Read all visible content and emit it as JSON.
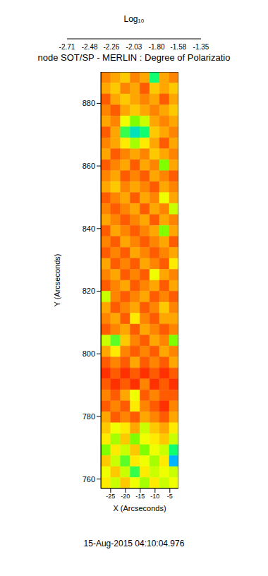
{
  "chart_data": {
    "type": "heatmap",
    "title": "node SOT/SP - MERLIN : Degree of Polarizatio",
    "subtitle": "15-Aug-2015 04:10:04.976",
    "x_label": "X (Arcseconds)",
    "y_label": "Y (Arcseconds)",
    "xlim": [
      -28.3,
      -2.1
    ],
    "xticks": [
      -25,
      -20,
      -15,
      -10,
      -5
    ],
    "ylim": [
      757,
      890
    ],
    "yticks": [
      760,
      780,
      800,
      820,
      840,
      860,
      880
    ],
    "x_edges": [
      -28.3,
      -25,
      -21.7,
      -18.4,
      -15.1,
      -11.8,
      -8.5,
      -5.2,
      -2.1
    ],
    "y_edges": [
      890,
      886.5,
      883,
      879.5,
      876,
      872.5,
      869,
      865.5,
      862,
      858.5,
      855,
      851.5,
      848,
      844.5,
      841,
      837.5,
      834,
      830.5,
      827,
      823.5,
      820,
      816.5,
      813,
      809.5,
      806,
      802.5,
      799,
      795.5,
      792,
      788.5,
      785,
      781.5,
      778,
      774.5,
      771,
      767.5,
      764,
      760.5,
      757
    ],
    "cells": [
      [
        -2.55,
        -2.5,
        -2.45,
        -2.55,
        -2.5,
        -2.05,
        -2.5,
        -2.55
      ],
      [
        -2.5,
        -2.45,
        -2.55,
        -2.5,
        -2.6,
        -2.45,
        -2.5,
        -2.45
      ],
      [
        -2.6,
        -2.5,
        -2.45,
        -2.5,
        -2.55,
        -2.5,
        -2.6,
        -2.5
      ],
      [
        -2.55,
        -2.6,
        -2.5,
        -2.45,
        -2.5,
        -2.55,
        -2.5,
        -2.45
      ],
      [
        -2.5,
        -2.55,
        -2.35,
        -2.2,
        -2.3,
        -2.5,
        -2.55,
        -2.5
      ],
      [
        -2.6,
        -2.5,
        -2.1,
        -1.95,
        -2.05,
        -2.45,
        -2.5,
        -2.55
      ],
      [
        -2.55,
        -2.5,
        -2.4,
        -2.25,
        -2.4,
        -2.5,
        -2.6,
        -2.5
      ],
      [
        -2.5,
        -2.6,
        -2.55,
        -2.5,
        -2.55,
        -2.45,
        -2.5,
        -2.55
      ],
      [
        -2.6,
        -2.55,
        -2.5,
        -2.6,
        -2.5,
        -2.55,
        -2.2,
        -2.5
      ],
      [
        -2.55,
        -2.5,
        -2.6,
        -2.55,
        -2.6,
        -2.5,
        -2.55,
        -2.6
      ],
      [
        -2.5,
        -2.45,
        -2.55,
        -2.5,
        -2.55,
        -2.6,
        -2.5,
        -2.55
      ],
      [
        -2.6,
        -2.55,
        -2.5,
        -2.6,
        -2.5,
        -2.55,
        -2.35,
        -2.5
      ],
      [
        -2.55,
        -2.6,
        -2.55,
        -2.5,
        -2.6,
        -2.5,
        -2.55,
        -2.3
      ],
      [
        -2.5,
        -2.55,
        -2.6,
        -2.55,
        -2.5,
        -2.6,
        -2.5,
        -2.55
      ],
      [
        -2.6,
        -2.5,
        -2.55,
        -2.6,
        -2.55,
        -2.5,
        -2.2,
        -2.5
      ],
      [
        -2.55,
        -2.6,
        -2.5,
        -2.55,
        -2.6,
        -2.55,
        -2.5,
        -2.6
      ],
      [
        -2.6,
        -2.55,
        -2.6,
        -2.5,
        -2.55,
        -2.6,
        -2.55,
        -2.5
      ],
      [
        -2.5,
        -2.6,
        -2.55,
        -2.6,
        -2.5,
        -2.55,
        -2.6,
        -2.4
      ],
      [
        -2.55,
        -2.5,
        -2.6,
        -2.55,
        -2.6,
        -2.35,
        -2.5,
        -2.55
      ],
      [
        -2.6,
        -2.55,
        -2.5,
        -2.6,
        -2.55,
        -2.5,
        -2.6,
        -2.5
      ],
      [
        -2.3,
        -2.55,
        -2.6,
        -2.55,
        -2.5,
        -2.6,
        -2.55,
        -2.6
      ],
      [
        -2.5,
        -2.6,
        -2.55,
        -2.5,
        -2.6,
        -2.55,
        -2.45,
        -2.55
      ],
      [
        -2.55,
        -2.5,
        -2.6,
        -2.4,
        -2.55,
        -2.6,
        -2.5,
        -2.5
      ],
      [
        -2.6,
        -2.55,
        -2.5,
        -2.6,
        -2.5,
        -2.55,
        -2.6,
        -2.55
      ],
      [
        -2.3,
        -2.15,
        -2.45,
        -2.55,
        -2.6,
        -2.5,
        -2.55,
        -2.2
      ],
      [
        -2.5,
        -2.4,
        -2.55,
        -2.6,
        -2.55,
        -2.6,
        -2.5,
        -2.55
      ],
      [
        -2.6,
        -2.55,
        -2.6,
        -2.5,
        -2.6,
        -2.55,
        -2.6,
        -2.5
      ],
      [
        -2.65,
        -2.6,
        -2.65,
        -2.6,
        -2.65,
        -2.6,
        -2.65,
        -2.6
      ],
      [
        -2.6,
        -2.65,
        -2.6,
        -2.65,
        -2.55,
        -2.65,
        -2.6,
        -2.65
      ],
      [
        -2.55,
        -2.6,
        -2.5,
        -2.35,
        -2.6,
        -2.55,
        -2.6,
        -2.6
      ],
      [
        -2.6,
        -2.55,
        -2.6,
        -2.4,
        -2.55,
        -2.6,
        -2.65,
        -2.55
      ],
      [
        -2.5,
        -2.6,
        -2.55,
        -2.6,
        -2.5,
        -2.55,
        -2.6,
        -2.5
      ],
      [
        -2.45,
        -2.35,
        -2.4,
        -2.5,
        -2.3,
        -2.45,
        -2.5,
        -2.4
      ],
      [
        -2.4,
        -2.25,
        -2.45,
        -2.2,
        -2.35,
        -2.4,
        -2.45,
        -2.3
      ],
      [
        -2.2,
        -2.4,
        -2.3,
        -2.45,
        -2.2,
        -2.35,
        -2.3,
        -2.05
      ],
      [
        -2.45,
        -2.3,
        -2.15,
        -2.4,
        -2.35,
        -2.25,
        -2.4,
        -1.85
      ],
      [
        -2.35,
        -2.45,
        -2.3,
        -2.1,
        -2.4,
        -2.3,
        -2.35,
        -2.3
      ],
      [
        -2.4,
        -2.3,
        -2.45,
        -2.35,
        -2.25,
        -2.4,
        -2.3,
        -2.35
      ]
    ],
    "colorbar": {
      "title": "Log₁₀",
      "range": [
        -2.71,
        -1.35
      ],
      "ticks": [
        -2.71,
        -2.48,
        -2.26,
        -2.03,
        {
          "value": -1.8,
          "label": "-1.80"
        },
        -1.58,
        -1.35
      ],
      "colors": [
        "#ff0000",
        "#ff8c00",
        "#ffff00",
        "#7fff00",
        "#00ff80",
        "#00c0ff",
        "#0000ff",
        "#400080",
        "#000000"
      ]
    }
  }
}
